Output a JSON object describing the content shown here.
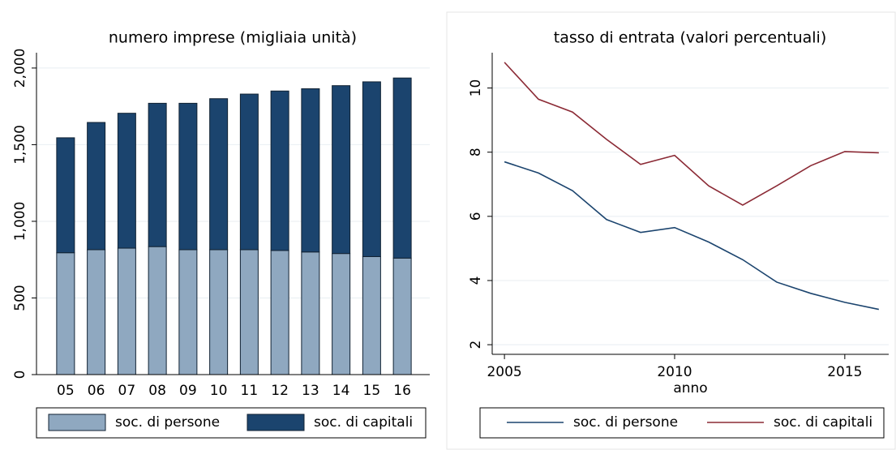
{
  "chart_data": [
    {
      "type": "bar",
      "stacked": true,
      "title": "numero imprese (migliaia unità)",
      "categories": [
        "05",
        "06",
        "07",
        "08",
        "09",
        "10",
        "11",
        "12",
        "13",
        "14",
        "15",
        "16"
      ],
      "series": [
        {
          "name": "soc. di persone",
          "color": "#8fa8c0",
          "values": [
            795,
            815,
            825,
            835,
            815,
            815,
            815,
            810,
            800,
            790,
            770,
            760
          ]
        },
        {
          "name": "soc. di capitali",
          "color": "#1b446e",
          "values": [
            750,
            830,
            880,
            935,
            955,
            985,
            1015,
            1040,
            1065,
            1095,
            1140,
            1175
          ]
        }
      ],
      "ylim": [
        0,
        2100
      ],
      "yticks": [
        0,
        500,
        {
          "value": 1000,
          "label": "1,000"
        },
        {
          "value": 1500,
          "label": "1,500"
        },
        {
          "value": 2000,
          "label": "2,000"
        }
      ],
      "grid": true
    },
    {
      "type": "line",
      "title": "tasso di entrata (valori percentuali)",
      "xlabel": "anno",
      "x": [
        2005,
        2006,
        2007,
        2008,
        2009,
        2010,
        2011,
        2012,
        2013,
        2014,
        2015,
        2016
      ],
      "series": [
        {
          "name": "soc. di persone",
          "color": "#1b446e",
          "values": [
            7.7,
            7.35,
            6.8,
            5.9,
            5.5,
            5.65,
            5.2,
            4.65,
            3.95,
            3.6,
            3.32,
            3.1
          ]
        },
        {
          "name": "soc. di capitali",
          "color": "#8b2a35",
          "values": [
            10.8,
            9.65,
            9.25,
            8.4,
            7.62,
            7.9,
            6.95,
            6.35,
            6.95,
            7.58,
            8.02,
            7.98
          ]
        }
      ],
      "xlim": [
        2004.64,
        2016.29
      ],
      "ylim": [
        1.7,
        11.1
      ],
      "xticks": [
        2005,
        2010,
        2015
      ],
      "yticks": [
        2,
        4,
        6,
        8,
        10
      ],
      "grid": true
    }
  ]
}
